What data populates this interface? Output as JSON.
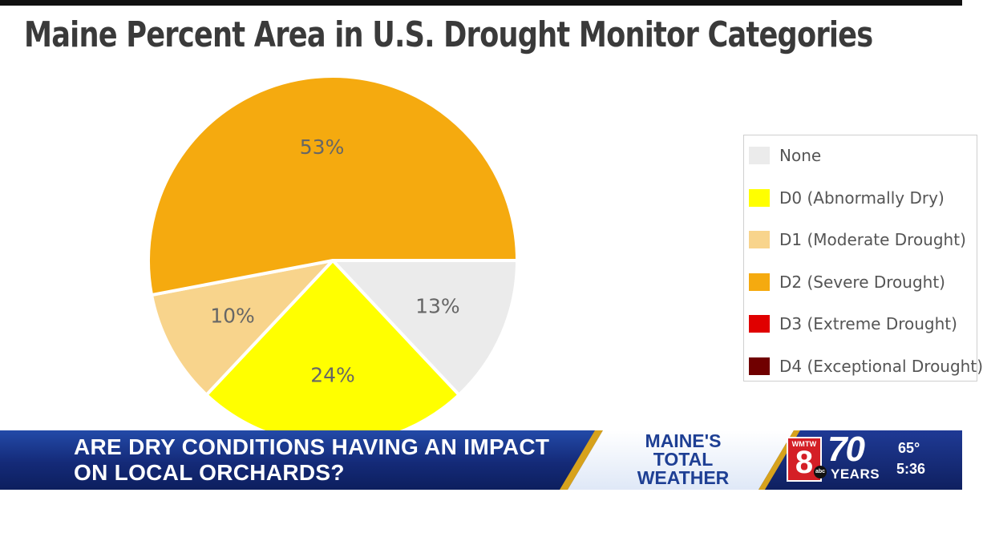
{
  "chart_data": {
    "type": "pie",
    "title": "Maine Percent Area in U.S. Drought Monitor Categories",
    "legend_position": "right",
    "slices": [
      {
        "name": "None",
        "value": 13,
        "label": "13%",
        "color": "#ebebeb"
      },
      {
        "name": "D0 (Abnormally Dry)",
        "value": 24,
        "label": "24%",
        "color": "#ffff00"
      },
      {
        "name": "D1 (Moderate Drought)",
        "value": 10,
        "label": "10%",
        "color": "#f8d48c"
      },
      {
        "name": "D2 (Severe Drought)",
        "value": 53,
        "label": "53%",
        "color": "#f5aa0f"
      },
      {
        "name": "D3 (Extreme Drought)",
        "value": 0,
        "label": "",
        "color": "#e00000"
      },
      {
        "name": "D4 (Exceptional Drought)",
        "value": 0,
        "label": "",
        "color": "#700000"
      }
    ]
  },
  "banner": {
    "headline_line1": "ARE DRY CONDITIONS HAVING AN IMPACT",
    "headline_line2": "ON LOCAL ORCHARDS?",
    "segment_line1": "MAINE'S",
    "segment_line2": "TOTAL",
    "segment_line3": "WEATHER",
    "station_call": "WMTW",
    "station_number": "8",
    "network": "abc",
    "anniversary_number": "70",
    "anniversary_label": "YEARS",
    "temperature": "65°",
    "time": "5:36"
  }
}
